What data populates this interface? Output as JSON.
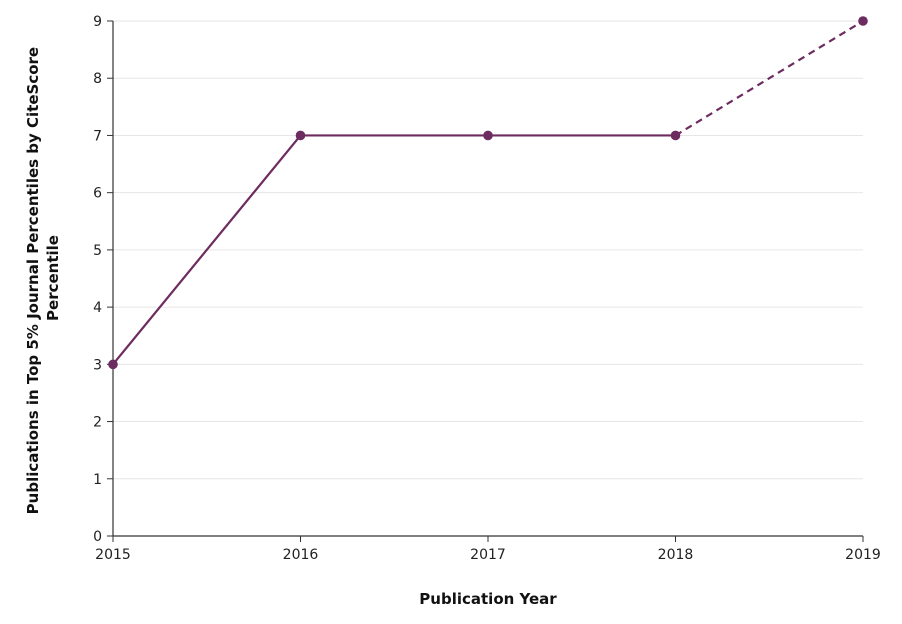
{
  "chart_data": {
    "type": "line",
    "x": [
      2015,
      2016,
      2017,
      2018,
      2019
    ],
    "series": [
      {
        "values": [
          3,
          7,
          7,
          7,
          9
        ]
      }
    ],
    "projected_from_index": 3,
    "xlabel": "Publication Year",
    "ylabel_lines": [
      "Publications in Top 5% Journal Percentiles by CiteScore",
      "Percentile"
    ],
    "xlim": [
      2015,
      2019
    ],
    "ylim": [
      0,
      9
    ],
    "xticks": [
      "2015",
      "2016",
      "2017",
      "2018",
      "2019"
    ],
    "yticks": [
      "0",
      "1",
      "2",
      "3",
      "4",
      "5",
      "6",
      "7",
      "8",
      "9"
    ],
    "grid": "horizontal",
    "colors": {
      "series": "#6d2c5f",
      "grid": "#e6e6e6",
      "axis": "#333333"
    }
  }
}
